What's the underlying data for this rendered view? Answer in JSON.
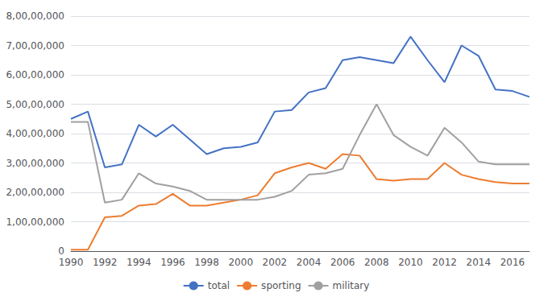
{
  "chart_data": {
    "type": "line",
    "x": [
      1990,
      1991,
      1992,
      1993,
      1994,
      1995,
      1996,
      1997,
      1998,
      1999,
      2000,
      2001,
      2002,
      2003,
      2004,
      2005,
      2006,
      2007,
      2008,
      2009,
      2010,
      2011,
      2012,
      2013,
      2014,
      2015,
      2016,
      2017
    ],
    "series": [
      {
        "name": "total",
        "color": "#4472C4",
        "values": [
          45000000,
          47500000,
          28500000,
          29500000,
          43000000,
          39000000,
          43000000,
          38000000,
          33000000,
          35000000,
          35500000,
          37000000,
          47500000,
          48000000,
          54000000,
          55500000,
          65000000,
          66000000,
          65000000,
          64000000,
          73000000,
          65000000,
          57500000,
          70000000,
          66500000,
          55000000,
          54500000,
          52500000
        ]
      },
      {
        "name": "sporting",
        "color": "#ED7D31",
        "values": [
          500000,
          500000,
          11500000,
          12000000,
          15500000,
          16000000,
          19500000,
          15500000,
          15500000,
          16500000,
          17500000,
          19000000,
          26500000,
          28500000,
          30000000,
          28000000,
          33000000,
          32500000,
          24500000,
          24000000,
          24500000,
          24500000,
          30000000,
          26000000,
          24500000,
          23500000,
          23000000,
          23000000
        ]
      },
      {
        "name": "military",
        "color": "#A0A0A0",
        "values": [
          44000000,
          44000000,
          16500000,
          17500000,
          26500000,
          23000000,
          22000000,
          20500000,
          17500000,
          17500000,
          17500000,
          17500000,
          18500000,
          20500000,
          26000000,
          26500000,
          28000000,
          39500000,
          50000000,
          39500000,
          35500000,
          32500000,
          42000000,
          37000000,
          30500000,
          29500000,
          29500000,
          29500000
        ]
      }
    ],
    "xlim": [
      1990,
      2017
    ],
    "xticks": [
      1990,
      1992,
      1994,
      1996,
      1998,
      2000,
      2002,
      2004,
      2006,
      2008,
      2010,
      2012,
      2014,
      2016
    ],
    "ylim": [
      0,
      80000000
    ],
    "yticks": [
      0,
      {
        "value": 10000000,
        "label": "1,00,00,000"
      },
      {
        "value": 20000000,
        "label": "2,00,00,000"
      },
      {
        "value": 30000000,
        "label": "3,00,00,000"
      },
      {
        "value": 40000000,
        "label": "4,00,00,000"
      },
      {
        "value": 50000000,
        "label": "5,00,00,000"
      },
      {
        "value": 60000000,
        "label": "6,00,00,000"
      },
      {
        "value": 70000000,
        "label": "7,00,00,000"
      },
      {
        "value": 80000000,
        "label": "8,00,00,000"
      }
    ],
    "grid": true,
    "legend": "bottom"
  }
}
